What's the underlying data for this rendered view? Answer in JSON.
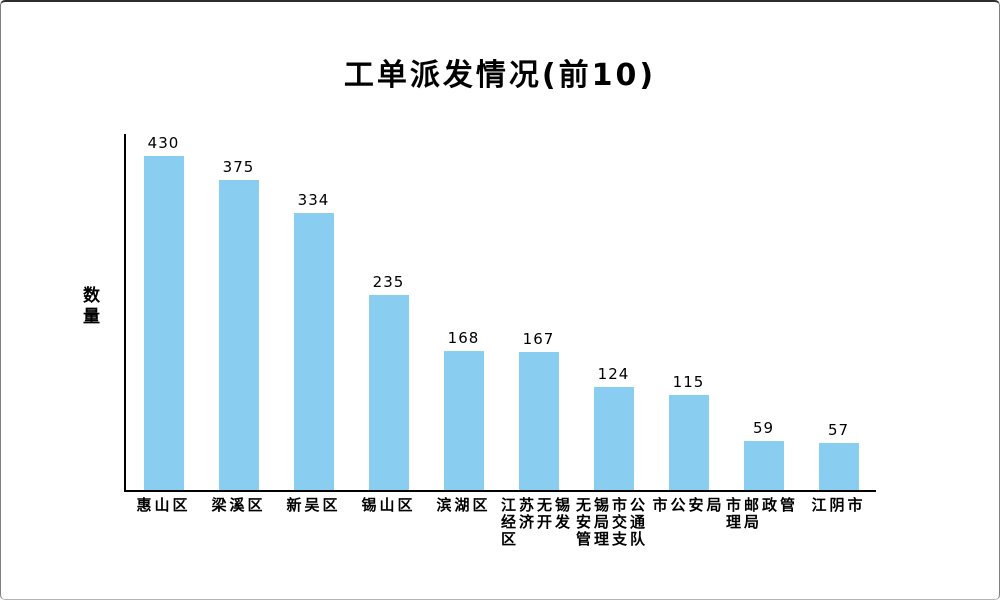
{
  "chart_data": {
    "type": "bar",
    "title": "工单派发情况(前10)",
    "xlabel": "",
    "ylabel": "数量",
    "categories": [
      "惠山区",
      "梁溪区",
      "新吴区",
      "锡山区",
      "滨湖区",
      "江苏无锡经济开发区",
      "无锡市公安局交通管理支队",
      "市公安局",
      "市邮政管理局",
      "江阴市"
    ],
    "values": [
      430,
      375,
      334,
      235,
      168,
      167,
      124,
      115,
      59,
      57
    ],
    "ylim": [
      0,
      430
    ],
    "grid": false,
    "legend": false,
    "value_labels_shown": true,
    "colors": {
      "bar": "#89CDF1",
      "axis": "#000000",
      "text": "#000000",
      "background": "#ffffff"
    }
  }
}
